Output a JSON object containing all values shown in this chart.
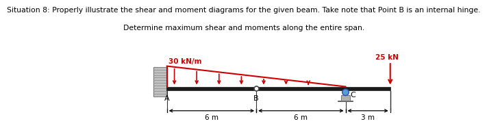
{
  "title_line1": "Situation 8: Properly illustrate the shear and moment diagrams for the given beam. Take note that Point B is an internal hinge.",
  "title_line2": "Determine maximum shear and moments along the entire span.",
  "title_bold_prefix": "Situation 8:",
  "title_fontsize": 7.8,
  "beam_color": "#1a1a1a",
  "wall_color": "#c0c0c0",
  "wall_hatch_color": "#888888",
  "distributed_load_color": "#cc0000",
  "point_load_color": "#cc0000",
  "support_ball_color": "#5b9bd5",
  "support_ped_color": "#b0b0b0",
  "dim_color": "#000000",
  "label_color": "#000000",
  "background_color": "#ffffff",
  "red_color": "#cc0000",
  "label_A": "A",
  "label_B": "B",
  "label_C": "C",
  "dim_labels": [
    "6 m",
    "6 m",
    "3 m"
  ],
  "load_label": "30 kN/m",
  "pt_load_label": "25 kN"
}
